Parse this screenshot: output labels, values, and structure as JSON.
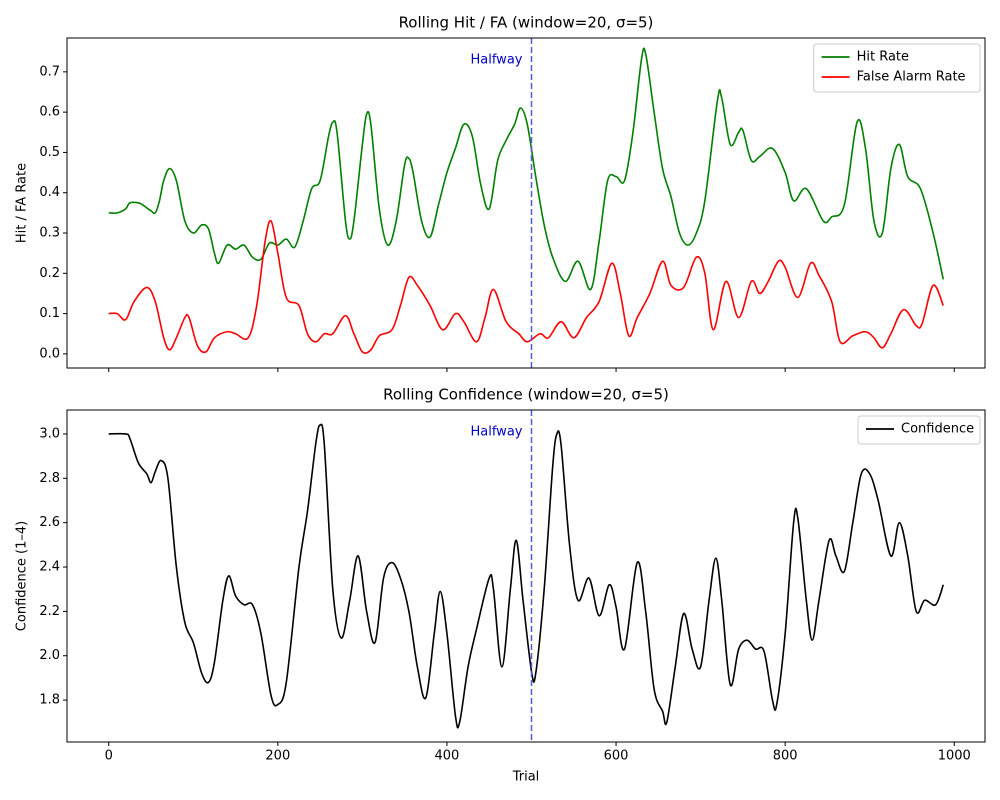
{
  "chart_data": [
    {
      "type": "line",
      "title": "Rolling Hit / FA (window=20, σ=5)",
      "y_label": "Hit / FA Rate",
      "xlim": [
        -49.35,
        1036.35
      ],
      "ylim": [
        -0.035,
        0.784
      ],
      "xticks": [
        0,
        200,
        400,
        600,
        800,
        1000
      ],
      "yticks": [
        {
          "value": 0,
          "label": "0.0"
        },
        0.1,
        0.2,
        0.3,
        0.4,
        0.5,
        0.6,
        0.7
      ],
      "legend": "upper right",
      "vline": {
        "x": 500,
        "label": "Halfway",
        "color": "#5555dd",
        "text_color": "#0000cc"
      },
      "series": [
        {
          "name": "Hit Rate",
          "color": "#008000",
          "x": [
            0,
            10,
            20,
            25,
            35,
            40,
            50,
            55,
            60,
            65,
            72,
            80,
            90,
            100,
            110,
            118,
            125,
            130,
            140,
            150,
            160,
            170,
            180,
            190,
            200,
            210,
            220,
            230,
            240,
            250,
            260,
            265,
            270,
            280,
            285,
            290,
            300,
            305,
            310,
            320,
            330,
            340,
            350,
            355,
            360,
            370,
            380,
            390,
            400,
            410,
            420,
            430,
            440,
            450,
            460,
            470,
            480,
            487,
            495,
            505,
            515,
            525,
            540,
            555,
            570,
            580,
            590,
            600,
            610,
            620,
            630,
            635,
            645,
            655,
            665,
            675,
            685,
            695,
            705,
            720,
            725,
            735,
            745,
            750,
            760,
            770,
            785,
            800,
            810,
            825,
            845,
            855,
            870,
            885,
            895,
            905,
            915,
            925,
            935,
            945,
            960,
            975,
            987
          ],
          "values": [
            0.35,
            0.35,
            0.36,
            0.375,
            0.375,
            0.37,
            0.355,
            0.35,
            0.38,
            0.43,
            0.46,
            0.43,
            0.33,
            0.3,
            0.32,
            0.31,
            0.25,
            0.225,
            0.27,
            0.26,
            0.27,
            0.24,
            0.235,
            0.275,
            0.27,
            0.285,
            0.265,
            0.33,
            0.41,
            0.43,
            0.54,
            0.575,
            0.55,
            0.33,
            0.285,
            0.33,
            0.52,
            0.595,
            0.57,
            0.36,
            0.27,
            0.33,
            0.47,
            0.485,
            0.45,
            0.33,
            0.29,
            0.37,
            0.45,
            0.51,
            0.57,
            0.54,
            0.42,
            0.36,
            0.48,
            0.53,
            0.57,
            0.61,
            0.57,
            0.44,
            0.32,
            0.24,
            0.18,
            0.23,
            0.16,
            0.28,
            0.43,
            0.44,
            0.43,
            0.55,
            0.73,
            0.745,
            0.6,
            0.46,
            0.39,
            0.3,
            0.27,
            0.3,
            0.38,
            0.63,
            0.635,
            0.52,
            0.55,
            0.555,
            0.48,
            0.49,
            0.51,
            0.45,
            0.38,
            0.41,
            0.33,
            0.34,
            0.37,
            0.575,
            0.51,
            0.33,
            0.3,
            0.46,
            0.52,
            0.44,
            0.41,
            0.3,
            0.185
          ]
        },
        {
          "name": "False Alarm Rate",
          "color": "#ff0000",
          "x": [
            0,
            10,
            20,
            30,
            45,
            55,
            65,
            72,
            80,
            90,
            95,
            105,
            115,
            125,
            140,
            150,
            165,
            175,
            185,
            192,
            200,
            210,
            225,
            235,
            245,
            255,
            265,
            280,
            290,
            300,
            310,
            320,
            335,
            345,
            355,
            365,
            380,
            395,
            410,
            420,
            435,
            445,
            455,
            470,
            485,
            495,
            510,
            520,
            535,
            550,
            565,
            580,
            595,
            605,
            615,
            625,
            640,
            655,
            665,
            680,
            695,
            705,
            715,
            730,
            745,
            760,
            770,
            780,
            792,
            800,
            815,
            830,
            840,
            855,
            865,
            880,
            895,
            905,
            915,
            925,
            940,
            955,
            962,
            975,
            987
          ],
          "values": [
            0.1,
            0.1,
            0.085,
            0.13,
            0.165,
            0.13,
            0.04,
            0.01,
            0.04,
            0.09,
            0.09,
            0.02,
            0.005,
            0.04,
            0.055,
            0.05,
            0.04,
            0.12,
            0.28,
            0.33,
            0.25,
            0.14,
            0.12,
            0.05,
            0.03,
            0.05,
            0.05,
            0.095,
            0.05,
            0.005,
            0.01,
            0.045,
            0.06,
            0.12,
            0.19,
            0.17,
            0.12,
            0.06,
            0.1,
            0.08,
            0.03,
            0.09,
            0.16,
            0.08,
            0.05,
            0.03,
            0.05,
            0.04,
            0.08,
            0.04,
            0.09,
            0.13,
            0.225,
            0.15,
            0.045,
            0.09,
            0.15,
            0.23,
            0.17,
            0.165,
            0.24,
            0.2,
            0.06,
            0.18,
            0.09,
            0.18,
            0.15,
            0.18,
            0.23,
            0.215,
            0.14,
            0.225,
            0.195,
            0.13,
            0.03,
            0.045,
            0.055,
            0.04,
            0.015,
            0.05,
            0.11,
            0.07,
            0.075,
            0.17,
            0.12
          ]
        }
      ]
    },
    {
      "type": "line",
      "title": "Rolling Confidence (window=20, σ=5)",
      "y_label": "Confidence (1–4)",
      "x_label": "Trial",
      "xlim": [
        -49.35,
        1036.35
      ],
      "ylim": [
        1.611,
        3.108
      ],
      "xticks": [
        0,
        200,
        400,
        600,
        800,
        1000
      ],
      "yticks": [
        1.8,
        {
          "value": 2,
          "label": "2.0"
        },
        2.2,
        2.4,
        2.6,
        2.8,
        {
          "value": 3,
          "label": "3.0"
        }
      ],
      "legend": "upper right",
      "vline": {
        "x": 500,
        "label": "Halfway",
        "color": "#5555dd",
        "text_color": "#0000cc"
      },
      "series": [
        {
          "name": "Confidence",
          "color": "#000000",
          "x": [
            0,
            20,
            25,
            35,
            45,
            50,
            55,
            62,
            70,
            80,
            90,
            100,
            110,
            118,
            125,
            135,
            142,
            150,
            160,
            170,
            180,
            192,
            200,
            210,
            225,
            235,
            245,
            250,
            255,
            265,
            275,
            285,
            295,
            305,
            315,
            325,
            335,
            345,
            355,
            365,
            375,
            385,
            392,
            400,
            410,
            415,
            425,
            435,
            450,
            455,
            465,
            475,
            482,
            490,
            500,
            505,
            515,
            525,
            530,
            535,
            545,
            555,
            568,
            580,
            592,
            600,
            610,
            625,
            635,
            645,
            655,
            660,
            670,
            680,
            690,
            700,
            710,
            718,
            725,
            735,
            745,
            755,
            765,
            775,
            785,
            790,
            800,
            810,
            815,
            825,
            832,
            840,
            852,
            860,
            870,
            880,
            890,
            900,
            910,
            925,
            935,
            945,
            955,
            965,
            978,
            987
          ],
          "values": [
            3.0,
            3.0,
            2.98,
            2.87,
            2.82,
            2.78,
            2.83,
            2.88,
            2.8,
            2.4,
            2.15,
            2.06,
            1.92,
            1.88,
            1.97,
            2.25,
            2.36,
            2.27,
            2.23,
            2.23,
            2.1,
            1.82,
            1.78,
            1.88,
            2.4,
            2.65,
            2.96,
            3.04,
            2.95,
            2.3,
            2.08,
            2.25,
            2.45,
            2.2,
            2.06,
            2.35,
            2.42,
            2.35,
            2.2,
            1.95,
            1.81,
            2.1,
            2.29,
            2.1,
            1.73,
            1.7,
            1.95,
            2.12,
            2.35,
            2.3,
            1.95,
            2.3,
            2.52,
            2.25,
            1.93,
            1.92,
            2.3,
            2.85,
            3.0,
            2.95,
            2.5,
            2.25,
            2.35,
            2.18,
            2.32,
            2.22,
            2.03,
            2.42,
            2.2,
            1.85,
            1.75,
            1.7,
            1.95,
            2.19,
            2.03,
            1.95,
            2.25,
            2.44,
            2.25,
            1.87,
            2.03,
            2.07,
            2.03,
            2.02,
            1.8,
            1.78,
            2.1,
            2.6,
            2.62,
            2.25,
            2.07,
            2.25,
            2.52,
            2.45,
            2.38,
            2.6,
            2.82,
            2.82,
            2.7,
            2.45,
            2.6,
            2.45,
            2.2,
            2.25,
            2.23,
            2.32
          ]
        }
      ]
    }
  ]
}
